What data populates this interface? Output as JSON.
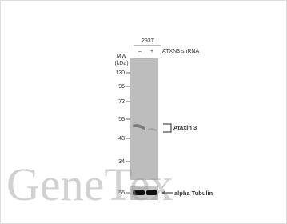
{
  "header": {
    "cell_line": "293T",
    "lanes": [
      "–",
      "+"
    ],
    "treatment": "ATXN3 shRNA"
  },
  "mw_label": [
    "MW",
    "(kDa)"
  ],
  "markers": [
    130,
    95,
    72,
    55,
    43,
    34
  ],
  "loading_marker": 55,
  "targets": {
    "main": "Ataxin 3",
    "loading": "alpha Tubulin"
  },
  "watermark": "GeneTex"
}
